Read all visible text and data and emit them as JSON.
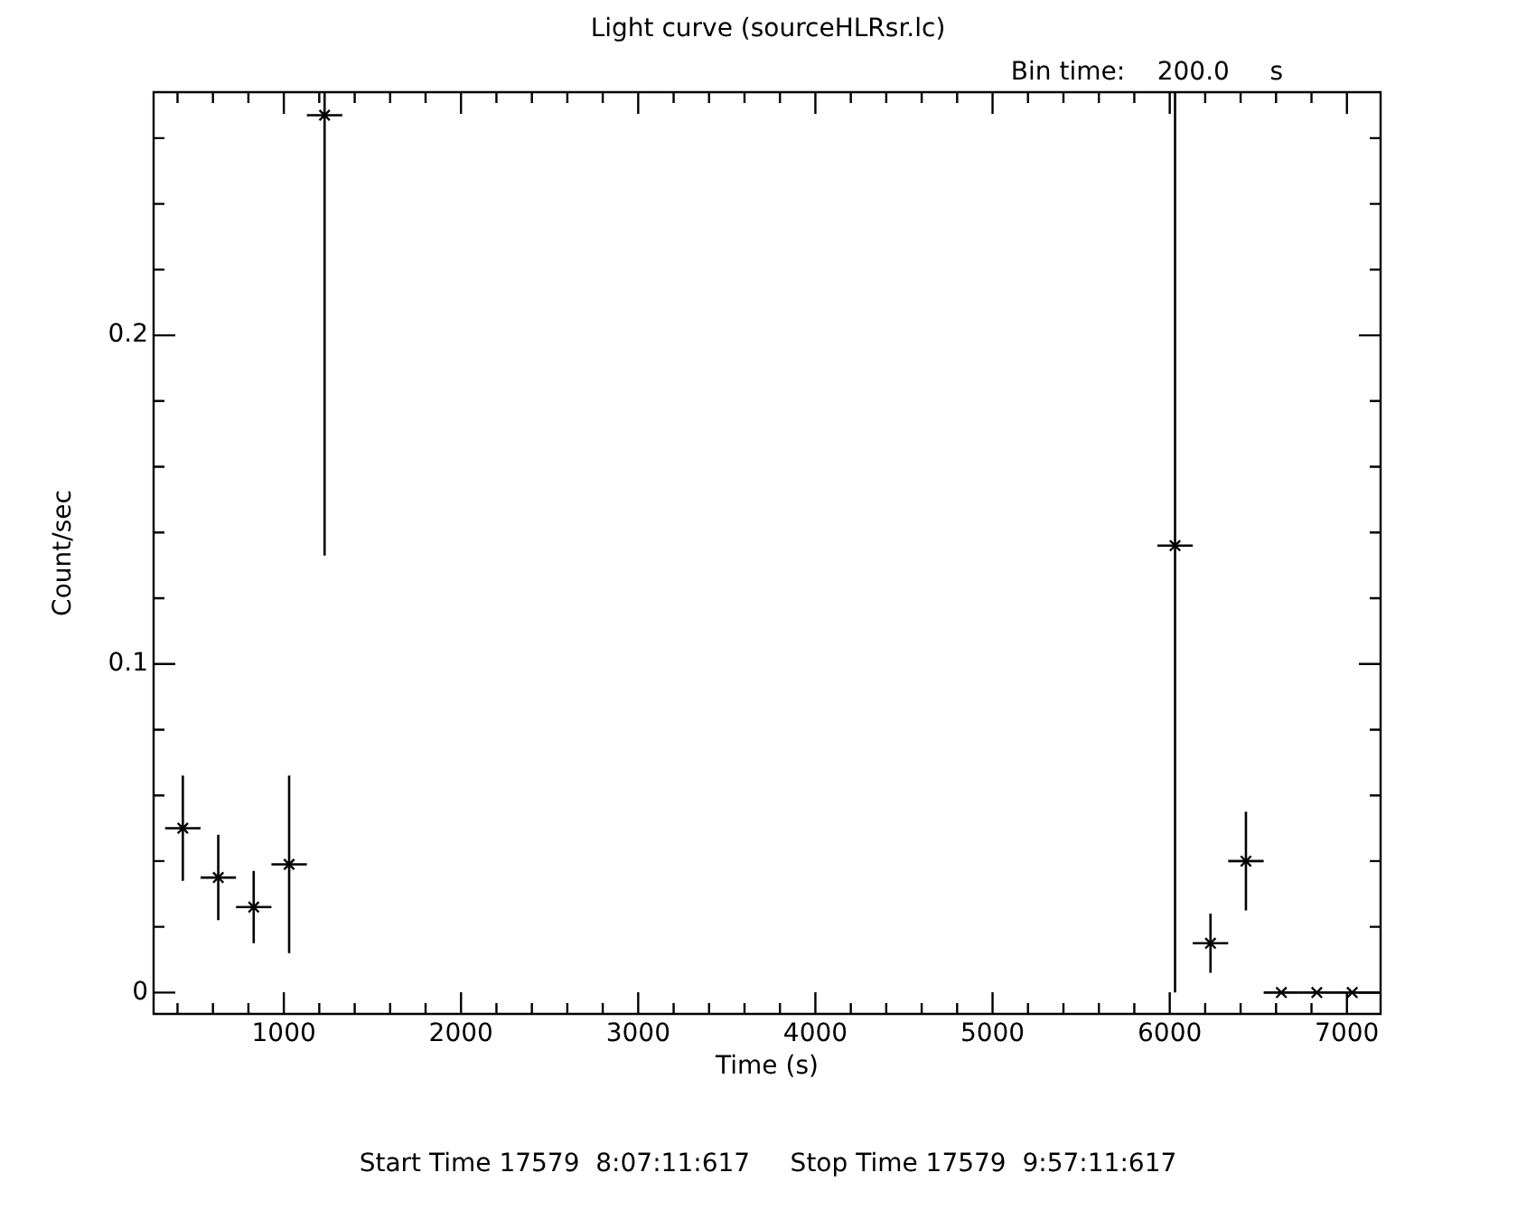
{
  "chart_data": {
    "type": "scatter",
    "title": "Light curve (sourceHLRsr.lc)",
    "subtitle": "Bin time:    200.0     s",
    "xlabel": "Time (s)",
    "ylabel": "Count/sec",
    "annotations": [
      "Start Time 17579  8:07:11:617     Stop Time 17579  9:57:11:617"
    ],
    "marker": "cross",
    "grid": false,
    "legend": false,
    "series": [
      {
        "color": "#000000",
        "x": [
          430,
          630,
          830,
          1030,
          1230,
          6030,
          6230,
          6430,
          6630,
          6830,
          7030
        ],
        "values": [
          0.05,
          0.035,
          0.026,
          0.039,
          0.267,
          0.136,
          0.015,
          0.04,
          0,
          0,
          0
        ],
        "errors": [
          0.016,
          0.013,
          0.011,
          0.027,
          [
            0.133,
            0.274
          ],
          [
            0,
            0.274
          ],
          0.009,
          0.015,
          0,
          0,
          0
        ],
        "xerrors": [
          [
            330,
            530
          ],
          [
            530,
            730
          ],
          [
            730,
            930
          ],
          [
            930,
            1130
          ],
          [
            1130,
            1330
          ],
          [
            5930,
            6130
          ],
          [
            6130,
            6330
          ],
          [
            6330,
            6530
          ],
          [
            6530,
            6730
          ],
          [
            6730,
            6930
          ],
          [
            6930,
            7190
          ]
        ]
      }
    ],
    "xlim": [
      265,
      7190
    ],
    "xticks": [
      {
        "value": 400,
        "label": null
      },
      {
        "value": 600,
        "label": null
      },
      {
        "value": 800,
        "label": null
      },
      1000,
      {
        "value": 1200,
        "label": null
      },
      {
        "value": 1400,
        "label": null
      },
      {
        "value": 1600,
        "label": null
      },
      {
        "value": 1800,
        "label": null
      },
      2000,
      {
        "value": 2200,
        "label": null
      },
      {
        "value": 2400,
        "label": null
      },
      {
        "value": 2600,
        "label": null
      },
      {
        "value": 2800,
        "label": null
      },
      3000,
      {
        "value": 3200,
        "label": null
      },
      {
        "value": 3400,
        "label": null
      },
      {
        "value": 3600,
        "label": null
      },
      {
        "value": 3800,
        "label": null
      },
      4000,
      {
        "value": 4200,
        "label": null
      },
      {
        "value": 4400,
        "label": null
      },
      {
        "value": 4600,
        "label": null
      },
      {
        "value": 4800,
        "label": null
      },
      5000,
      {
        "value": 5200,
        "label": null
      },
      {
        "value": 5400,
        "label": null
      },
      {
        "value": 5600,
        "label": null
      },
      {
        "value": 5800,
        "label": null
      },
      6000,
      {
        "value": 6200,
        "label": null
      },
      {
        "value": 6400,
        "label": null
      },
      {
        "value": 6600,
        "label": null
      },
      {
        "value": 6800,
        "label": null
      },
      7000
    ],
    "ylim": [
      -0.0065,
      0.274
    ],
    "yticks": [
      0,
      {
        "value": 0.02,
        "label": null
      },
      {
        "value": 0.04,
        "label": null
      },
      {
        "value": 0.06,
        "label": null
      },
      {
        "value": 0.08,
        "label": null
      },
      0.1,
      {
        "value": 0.12,
        "label": null
      },
      {
        "value": 0.14,
        "label": null
      },
      {
        "value": 0.16,
        "label": null
      },
      {
        "value": 0.18,
        "label": null
      },
      0.2,
      {
        "value": 0.22,
        "label": null
      },
      {
        "value": 0.24,
        "label": null
      },
      {
        "value": 0.26,
        "label": null
      }
    ]
  }
}
